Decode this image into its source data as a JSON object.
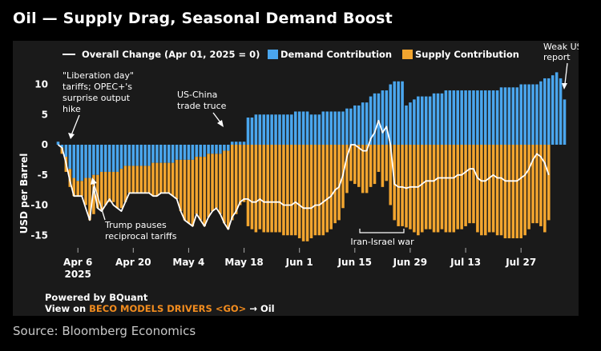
{
  "header": {
    "title": "Oil — Supply Drag, Seasonal Demand Boost"
  },
  "footer": {
    "source": "Source: Bloomberg Economics"
  },
  "branding": {
    "powered_by": "Powered by BQuant",
    "view_on_prefix": "View on ",
    "view_on_link": "BECO MODELS DRIVERS <GO>",
    "view_on_suffix": " → Oil"
  },
  "colors": {
    "demand": "#4aa6ee",
    "supply": "#f2a52f",
    "line": "#ffffff",
    "background": "#000000",
    "panel": "#1a1a1a",
    "link": "#f28c1e"
  },
  "chart_data": {
    "type": "bar",
    "stacked": true,
    "title": "",
    "xlabel": "",
    "ylabel": "USD per Barrel",
    "ylim": [
      -17,
      13
    ],
    "yticks": [
      10,
      5,
      0,
      -5,
      -10,
      -15
    ],
    "grid": false,
    "legend_position": "top",
    "x_tick_labels": [
      {
        "day": 5,
        "label": "Apr 6",
        "sub": "2025"
      },
      {
        "day": 19,
        "label": "Apr 20"
      },
      {
        "day": 33,
        "label": "May 4"
      },
      {
        "day": 47,
        "label": "May 18"
      },
      {
        "day": 61,
        "label": "Jun 1"
      },
      {
        "day": 75,
        "label": "Jun 15"
      },
      {
        "day": 89,
        "label": "Jun 29"
      },
      {
        "day": 103,
        "label": "Jul 13"
      },
      {
        "day": 117,
        "label": "Jul 27"
      }
    ],
    "series": [
      {
        "name": "Overall Change (Apr 01, 2025 = 0)",
        "kind": "line",
        "values": [
          0,
          -0.5,
          -3,
          -6,
          -8.5,
          -8.5,
          -8.5,
          -10.5,
          -12.5,
          -7,
          -10.5,
          -11,
          -10,
          -9,
          -10,
          -10.5,
          -11,
          -9.5,
          -8,
          -8,
          -8,
          -8,
          -8,
          -8,
          -8.5,
          -8.5,
          -8,
          -8,
          -8,
          -8.5,
          -9,
          -11,
          -12.5,
          -13,
          -13.5,
          -11.5,
          -12.5,
          -13.5,
          -12,
          -11,
          -10.5,
          -11.5,
          -13,
          -14,
          -12,
          -11,
          -9.5,
          -9,
          -9,
          -9.5,
          -9.5,
          -9,
          -9.5,
          -9.5,
          -9.5,
          -9.5,
          -9.5,
          -10,
          -10,
          -10,
          -9.5,
          -10,
          -10.5,
          -10.5,
          -10.5,
          -10,
          -10,
          -9.5,
          -9,
          -8.5,
          -7.5,
          -7,
          -5,
          -2,
          0,
          0,
          -0.5,
          -1,
          -1,
          1,
          2,
          4,
          2,
          3,
          0,
          -6.5,
          -7,
          -7,
          -7.2,
          -7,
          -7,
          -7,
          -6.5,
          -6,
          -6,
          -6,
          -5.5,
          -5.5,
          -5.5,
          -5.5,
          -5.5,
          -5,
          -5,
          -4.5,
          -4,
          -4,
          -5.5,
          -6,
          -6,
          -5.5,
          -5,
          -5.5,
          -5.5,
          -6,
          -6,
          -6,
          -6,
          -5.5,
          -5,
          -4,
          -2.5,
          -1.5,
          -2,
          -3,
          -5
        ]
      },
      {
        "name": "Demand Contribution",
        "kind": "bar",
        "values": [
          0.5,
          -0.5,
          -2,
          -4,
          -5.5,
          -6,
          -6,
          -5.5,
          -5.5,
          -5,
          -5,
          -4.5,
          -4.5,
          -4.5,
          -4.5,
          -4.5,
          -4,
          -3.5,
          -3.5,
          -3.5,
          -3.5,
          -3.5,
          -3.5,
          -3.5,
          -3,
          -3,
          -3,
          -3,
          -3,
          -3,
          -2.5,
          -2.5,
          -2.5,
          -2.5,
          -2.5,
          -2,
          -2,
          -2,
          -1.5,
          -1.5,
          -1.5,
          -1.5,
          -1,
          -1,
          0.5,
          0.5,
          0.5,
          0.5,
          4.5,
          4.5,
          5,
          5,
          5,
          5,
          5,
          5,
          5,
          5,
          5,
          5,
          5.5,
          5.5,
          5.5,
          5.5,
          5,
          5,
          5,
          5.5,
          5.5,
          5.5,
          5.5,
          5.5,
          5.5,
          6,
          6,
          6.5,
          6.5,
          7,
          7,
          8,
          8.5,
          8.5,
          9,
          9,
          10,
          10.5,
          10.5,
          10.5,
          6.5,
          7,
          7.5,
          8,
          8,
          8,
          8,
          8.5,
          8.5,
          8.5,
          9,
          9,
          9,
          9,
          9,
          9,
          9,
          9,
          9,
          9,
          9,
          9,
          9,
          9,
          9.5,
          9.5,
          9.5,
          9.5,
          9.5,
          10,
          10,
          10,
          10,
          10,
          10.5,
          11,
          11,
          11.5,
          12,
          11,
          7.5
        ]
      },
      {
        "name": "Supply Contribution",
        "kind": "bar",
        "values": [
          0,
          -1,
          -2.5,
          -3,
          -3,
          -2.5,
          -2.5,
          -4.5,
          -7,
          -6.5,
          -5.5,
          -6.5,
          -5.5,
          -5,
          -5,
          -6,
          -6.5,
          -6,
          -4.5,
          -4.5,
          -4.5,
          -4.5,
          -4.5,
          -4.5,
          -5.5,
          -5.5,
          -5,
          -5,
          -5,
          -5.5,
          -6.5,
          -8.5,
          -10,
          -10.5,
          -11,
          -9.5,
          -10.5,
          -11.5,
          -10.5,
          -9.5,
          -9,
          -10,
          -12,
          -13,
          -12.5,
          -11.5,
          -10,
          -9.5,
          -13.5,
          -14,
          -14.5,
          -14,
          -14.5,
          -14.5,
          -14.5,
          -14.5,
          -14.5,
          -15,
          -15,
          -15,
          -15,
          -15.5,
          -16,
          -16,
          -15.5,
          -15,
          -15,
          -15,
          -14.5,
          -14,
          -13,
          -12.5,
          -10.5,
          -8,
          -6,
          -6.5,
          -7,
          -8,
          -8,
          -7,
          -6.5,
          -4.5,
          -7,
          -6,
          -10,
          -12.5,
          -13.5,
          -13.5,
          -13.7,
          -14,
          -14.5,
          -15,
          -14.5,
          -14,
          -14,
          -14.5,
          -14.5,
          -14,
          -14.5,
          -14.5,
          -14.5,
          -14,
          -14,
          -13.5,
          -13,
          -13,
          -14.5,
          -15,
          -15,
          -14.5,
          -14.5,
          -15,
          -15,
          -15.5,
          -15.5,
          -15.5,
          -15.5,
          -15.5,
          -15,
          -14,
          -13,
          -13,
          -13.5,
          -14.5,
          -12.5
        ]
      }
    ],
    "annotations": [
      {
        "id": "liberation",
        "lines": [
          "\"Liberation day\"",
          "tariffs; OPEC+'s",
          "surprise output",
          "hike"
        ]
      },
      {
        "id": "trump",
        "lines": [
          "Trump pauses",
          "reciprocal tariffs"
        ]
      },
      {
        "id": "uschina",
        "lines": [
          "US-China",
          "trade truce"
        ]
      },
      {
        "id": "iran",
        "lines": [
          "Iran-Israel war"
        ]
      },
      {
        "id": "jobs",
        "lines": [
          "Weak US jobs",
          "report"
        ]
      }
    ]
  }
}
